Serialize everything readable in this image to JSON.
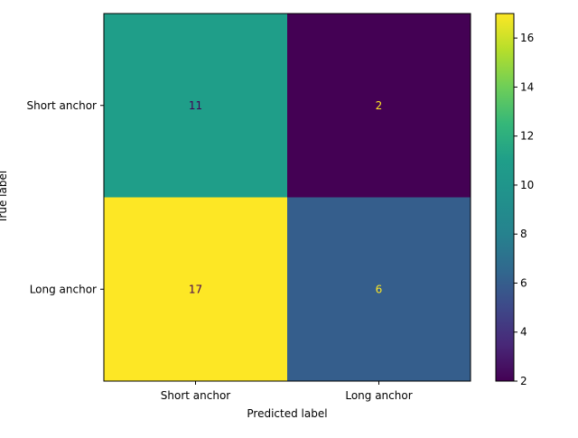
{
  "chart_data": {
    "type": "heatmap",
    "title": "",
    "xlabel": "Predicted label",
    "ylabel": "True label",
    "x_categories": [
      "Short anchor",
      "Long anchor"
    ],
    "y_categories": [
      "Short anchor",
      "Long anchor"
    ],
    "values": [
      [
        11,
        2
      ],
      [
        17,
        6
      ]
    ],
    "colormap": "viridis",
    "colorbar": {
      "min": 2,
      "max": 17,
      "ticks": [
        2,
        4,
        6,
        8,
        10,
        12,
        14,
        16
      ]
    },
    "grid": false
  }
}
